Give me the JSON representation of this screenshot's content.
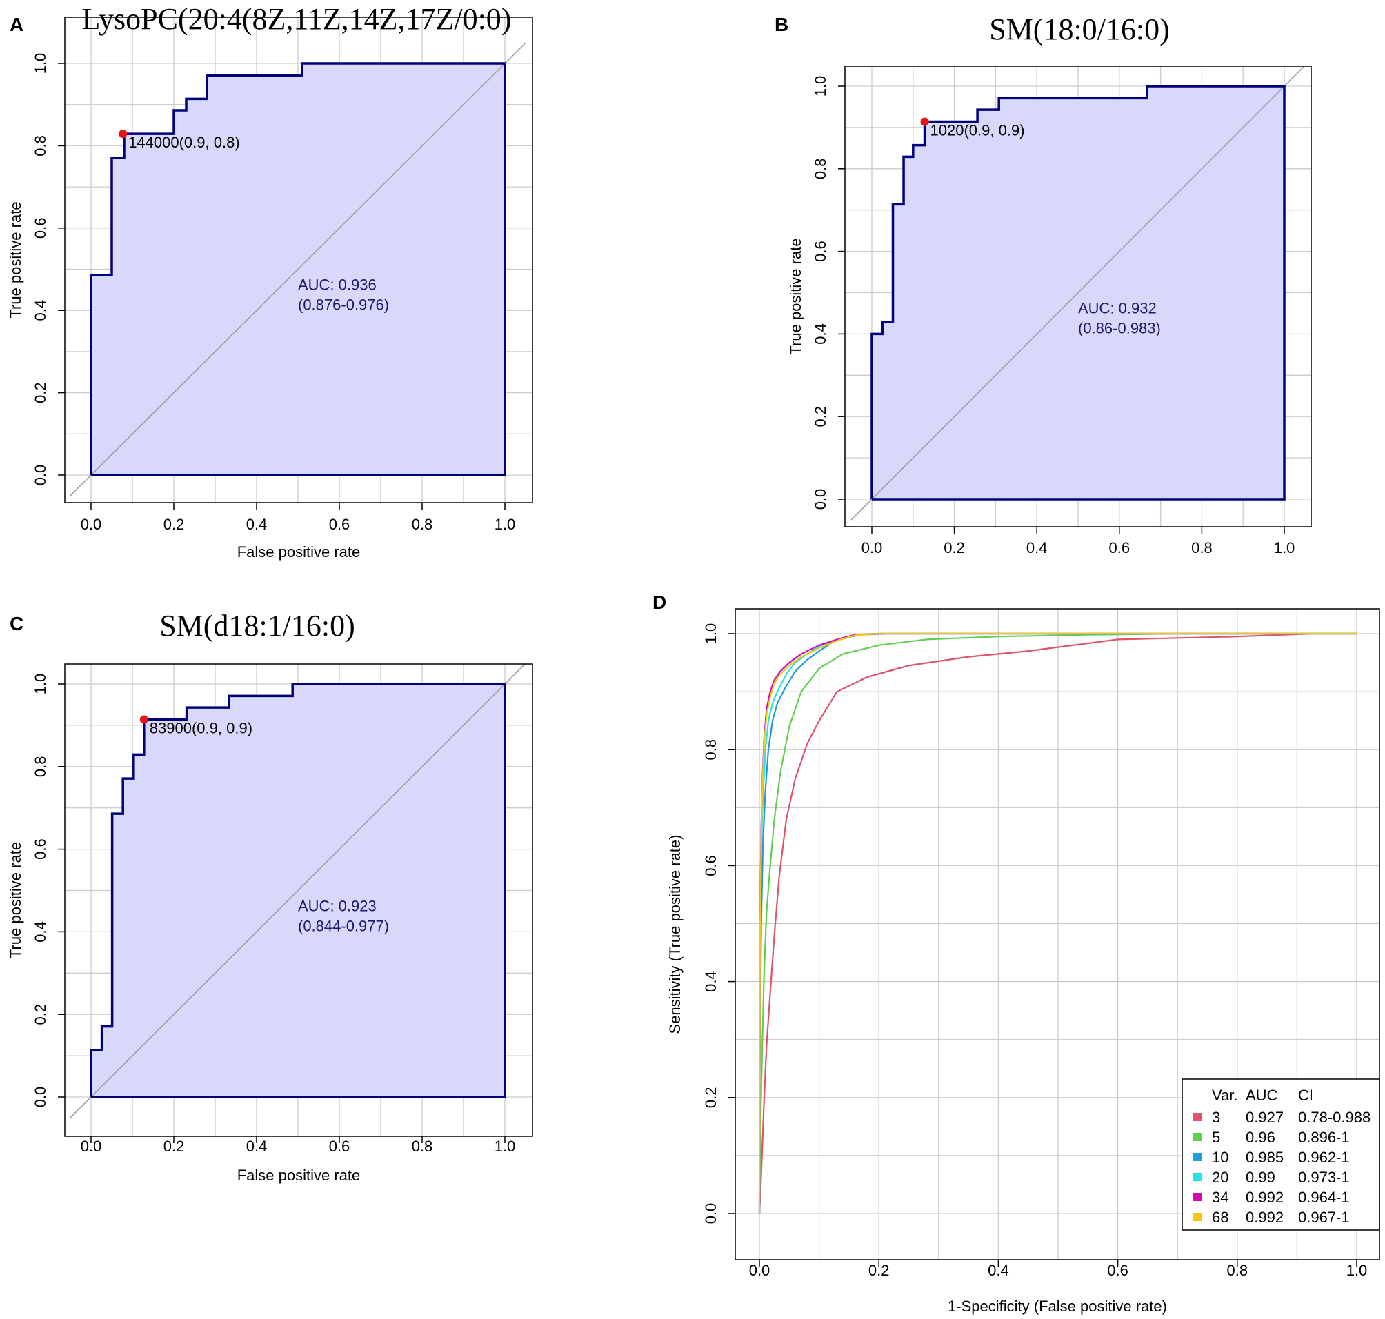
{
  "colors": {
    "roc_line": "#00007a",
    "roc_fill": "#d8d8fb",
    "cutpoint": "#ee1111",
    "grid": "#cccccc",
    "diagonal": "#999999",
    "auc_text": "#1a1a6e"
  },
  "chart_data": [
    {
      "panel": "A",
      "type": "line",
      "title": "LysoPC(20:4(8Z,11Z,14Z,17Z/0:0)",
      "xlabel": "False positive rate",
      "ylabel": "True positive rate",
      "xlim": [
        0,
        1
      ],
      "ylim": [
        0,
        1
      ],
      "xticks": [
        "0.0",
        "0.2",
        "0.4",
        "0.6",
        "0.8",
        "1.0"
      ],
      "yticks": [
        "0.0",
        "0.2",
        "0.4",
        "0.6",
        "0.8",
        "1.0"
      ],
      "grid": true,
      "roc": {
        "x": [
          0,
          0,
          0.05,
          0.05,
          0.05,
          0.08,
          0.08,
          0.2,
          0.2,
          0.23,
          0.23,
          0.28,
          0.28,
          0.51,
          0.51,
          1.0,
          1.0
        ],
        "y": [
          0,
          0.486,
          0.486,
          0.714,
          0.771,
          0.771,
          0.829,
          0.829,
          0.886,
          0.886,
          0.914,
          0.914,
          0.971,
          0.971,
          1.0,
          1.0,
          1.0
        ]
      },
      "cutpoint": {
        "x": 0.077,
        "y": 0.829,
        "label": "144000(0.9, 0.8)"
      },
      "auc_line1": "AUC: 0.936",
      "auc_line2": "(0.876-0.976)",
      "auc_pos": {
        "x": 0.5,
        "y": 0.45
      }
    },
    {
      "panel": "B",
      "type": "line",
      "title": "SM(18:0/16:0)",
      "xlabel": "",
      "ylabel": "True positive rate",
      "xlim": [
        0,
        1
      ],
      "ylim": [
        0,
        1
      ],
      "xticks": [
        "0.0",
        "0.2",
        "0.4",
        "0.6",
        "0.8",
        "1.0"
      ],
      "yticks": [
        "0.0",
        "0.2",
        "0.4",
        "0.6",
        "0.8",
        "1.0"
      ],
      "grid": true,
      "roc": {
        "x": [
          0,
          0,
          0.026,
          0.026,
          0.051,
          0.051,
          0.077,
          0.077,
          0.1,
          0.1,
          0.128,
          0.128,
          0.256,
          0.256,
          0.308,
          0.308,
          0.667,
          0.667,
          1.0,
          1.0
        ],
        "y": [
          0,
          0.4,
          0.4,
          0.429,
          0.429,
          0.714,
          0.714,
          0.829,
          0.829,
          0.857,
          0.857,
          0.914,
          0.914,
          0.943,
          0.943,
          0.971,
          0.971,
          1.0,
          1.0,
          1.0
        ]
      },
      "cutpoint": {
        "x": 0.128,
        "y": 0.914,
        "label": "1020(0.9, 0.9)"
      },
      "auc_line1": "AUC: 0.932",
      "auc_line2": "(0.86-0.983)",
      "auc_pos": {
        "x": 0.5,
        "y": 0.45
      }
    },
    {
      "panel": "C",
      "type": "line",
      "title": "SM(d18:1/16:0)",
      "xlabel": "False positive rate",
      "ylabel": "True positive rate",
      "xlim": [
        0,
        1
      ],
      "ylim": [
        0,
        1
      ],
      "xticks": [
        "0.0",
        "0.2",
        "0.4",
        "0.6",
        "0.8",
        "1.0"
      ],
      "yticks": [
        "0.0",
        "0.2",
        "0.4",
        "0.6",
        "0.8",
        "1.0"
      ],
      "grid": true,
      "roc": {
        "x": [
          0,
          0,
          0.026,
          0.026,
          0.051,
          0.051,
          0.077,
          0.077,
          0.103,
          0.103,
          0.128,
          0.128,
          0.231,
          0.231,
          0.333,
          0.333,
          0.487,
          0.487,
          1.0,
          1.0
        ],
        "y": [
          0,
          0.114,
          0.114,
          0.171,
          0.171,
          0.686,
          0.686,
          0.771,
          0.771,
          0.829,
          0.829,
          0.914,
          0.914,
          0.943,
          0.943,
          0.971,
          0.971,
          1.0,
          1.0,
          1.0
        ]
      },
      "cutpoint": {
        "x": 0.128,
        "y": 0.914,
        "label": "83900(0.9, 0.9)"
      },
      "auc_line1": "AUC: 0.923",
      "auc_line2": "(0.844-0.977)",
      "auc_pos": {
        "x": 0.5,
        "y": 0.45
      }
    },
    {
      "panel": "D",
      "type": "line",
      "title": "",
      "xlabel": "1-Specificity (False positive rate)",
      "ylabel": "Sensitivity (True positive rate)",
      "xlim": [
        0,
        1
      ],
      "ylim": [
        0,
        1
      ],
      "xticks": [
        "0.0",
        "0.2",
        "0.4",
        "0.6",
        "0.8",
        "1.0"
      ],
      "yticks": [
        "0.0",
        "0.2",
        "0.4",
        "0.6",
        "0.8",
        "1.0"
      ],
      "grid": true,
      "legend": {
        "position": "bottom-right",
        "header": [
          "Var.",
          "AUC",
          "CI"
        ],
        "entries": [
          {
            "var": "3",
            "auc": "0.927",
            "ci": "0.78-0.988",
            "color": "#df536b"
          },
          {
            "var": "5",
            "auc": "0.96",
            "ci": "0.896-1",
            "color": "#61d04f"
          },
          {
            "var": "10",
            "auc": "0.985",
            "ci": "0.962-1",
            "color": "#2297e6"
          },
          {
            "var": "20",
            "auc": "0.99",
            "ci": "0.973-1",
            "color": "#28e2e5"
          },
          {
            "var": "34",
            "auc": "0.992",
            "ci": "0.964-1",
            "color": "#cd0bbc"
          },
          {
            "var": "68",
            "auc": "0.992",
            "ci": "0.967-1",
            "color": "#f5c710"
          }
        ]
      },
      "series": [
        {
          "name": "3",
          "color": "#df536b",
          "x": [
            0,
            0.002,
            0.005,
            0.008,
            0.012,
            0.018,
            0.025,
            0.033,
            0.045,
            0.06,
            0.08,
            0.1,
            0.13,
            0.18,
            0.25,
            0.35,
            0.45,
            0.6,
            0.8,
            0.93,
            1.0
          ],
          "y": [
            0,
            0.04,
            0.12,
            0.2,
            0.29,
            0.38,
            0.48,
            0.58,
            0.68,
            0.75,
            0.81,
            0.85,
            0.9,
            0.925,
            0.945,
            0.96,
            0.97,
            0.99,
            0.995,
            1.0,
            1.0
          ]
        },
        {
          "name": "5",
          "color": "#61d04f",
          "x": [
            0,
            0.002,
            0.005,
            0.008,
            0.012,
            0.018,
            0.025,
            0.035,
            0.05,
            0.07,
            0.1,
            0.14,
            0.2,
            0.28,
            0.4,
            0.55,
            0.7,
            1.0
          ],
          "y": [
            0,
            0.16,
            0.3,
            0.42,
            0.52,
            0.6,
            0.68,
            0.76,
            0.84,
            0.9,
            0.94,
            0.965,
            0.98,
            0.99,
            0.995,
            0.998,
            1.0,
            1.0
          ]
        },
        {
          "name": "10",
          "color": "#2297e6",
          "x": [
            0,
            0.001,
            0.003,
            0.006,
            0.01,
            0.015,
            0.022,
            0.03,
            0.045,
            0.06,
            0.08,
            0.1,
            0.13,
            0.17,
            0.22,
            1.0
          ],
          "y": [
            0,
            0.3,
            0.5,
            0.64,
            0.73,
            0.8,
            0.85,
            0.88,
            0.91,
            0.935,
            0.955,
            0.97,
            0.99,
            0.998,
            1.0,
            1.0
          ]
        },
        {
          "name": "20",
          "color": "#28e2e5",
          "x": [
            0,
            0.001,
            0.003,
            0.006,
            0.01,
            0.015,
            0.022,
            0.03,
            0.045,
            0.06,
            0.08,
            0.1,
            0.13,
            0.16,
            0.2,
            1.0
          ],
          "y": [
            0,
            0.45,
            0.62,
            0.72,
            0.8,
            0.85,
            0.88,
            0.9,
            0.93,
            0.95,
            0.965,
            0.978,
            0.99,
            0.998,
            1.0,
            1.0
          ]
        },
        {
          "name": "34",
          "color": "#cd0bbc",
          "x": [
            0,
            0.001,
            0.003,
            0.005,
            0.008,
            0.012,
            0.018,
            0.025,
            0.035,
            0.05,
            0.07,
            0.1,
            0.13,
            0.16,
            0.2,
            1.0
          ],
          "y": [
            0,
            0.5,
            0.66,
            0.75,
            0.82,
            0.87,
            0.9,
            0.92,
            0.935,
            0.95,
            0.965,
            0.98,
            0.99,
            0.998,
            1.0,
            1.0
          ]
        },
        {
          "name": "68",
          "color": "#f5c710",
          "x": [
            0,
            0.001,
            0.003,
            0.005,
            0.008,
            0.012,
            0.018,
            0.025,
            0.035,
            0.05,
            0.07,
            0.1,
            0.13,
            0.16,
            0.2,
            1.0
          ],
          "y": [
            0,
            0.48,
            0.64,
            0.74,
            0.81,
            0.86,
            0.89,
            0.915,
            0.93,
            0.945,
            0.96,
            0.975,
            0.988,
            0.997,
            1.0,
            1.0
          ]
        }
      ]
    }
  ]
}
